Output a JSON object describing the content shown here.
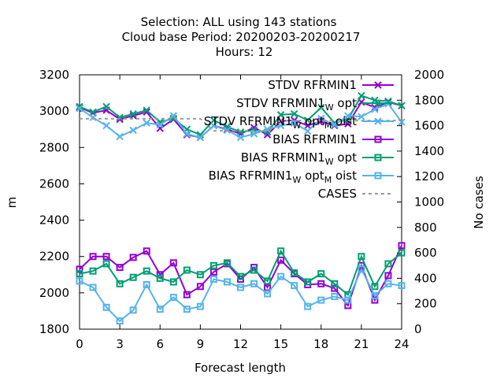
{
  "chart_data": {
    "type": "line",
    "title_lines": [
      "Selection: ALL using   143 stations",
      "Cloud base   Period: 20200203-20200217",
      "Hours:  12"
    ],
    "xlabel": "Forecast length",
    "ylabel": "m",
    "y2label": "No cases",
    "xlim": [
      0,
      24
    ],
    "ylim": [
      1800,
      3200
    ],
    "y2lim": [
      0,
      2000
    ],
    "x_ticks": [
      0,
      3,
      6,
      9,
      12,
      15,
      18,
      21,
      24
    ],
    "y_ticks": [
      1800,
      2000,
      2200,
      2400,
      2600,
      2800,
      3000,
      3200
    ],
    "y2_ticks": [
      0,
      200,
      400,
      600,
      800,
      1000,
      1200,
      1400,
      1600,
      1800,
      2000
    ],
    "grid": false,
    "legend_position": "top-right",
    "x": [
      0,
      1,
      2,
      3,
      4,
      5,
      6,
      7,
      8,
      9,
      10,
      11,
      12,
      13,
      14,
      15,
      16,
      17,
      18,
      19,
      20,
      21,
      22,
      23,
      24
    ],
    "series": [
      {
        "name": "STDV RFRMIN1",
        "legend_parts": [
          {
            "t": "STDV RFRMIN1"
          }
        ],
        "color": "#9400d3",
        "marker": "x",
        "axis": "y",
        "values": [
          3020,
          2990,
          3005,
          2955,
          2975,
          2995,
          2905,
          2955,
          2870,
          2855,
          2920,
          2900,
          2875,
          2910,
          2870,
          2945,
          2950,
          2920,
          2945,
          2920,
          2930,
          3050,
          3020,
          3050,
          3030
        ]
      },
      {
        "name": "STDV RFRMIN1_W opt",
        "legend_parts": [
          {
            "t": "STDV RFRMIN1"
          },
          {
            "t": "W",
            "sub": true
          },
          {
            "t": " opt"
          }
        ],
        "color": "#009e73",
        "marker": "x",
        "axis": "y",
        "values": [
          3025,
          2995,
          3025,
          2965,
          2985,
          3005,
          2940,
          2960,
          2900,
          2870,
          2950,
          2915,
          2885,
          2895,
          2885,
          2980,
          2985,
          2950,
          3020,
          2935,
          2955,
          3085,
          3060,
          3055,
          3030
        ]
      },
      {
        "name": "STDV RFRMIN1_W opt_M oist",
        "legend_parts": [
          {
            "t": "STDV RFRMIN1"
          },
          {
            "t": "W",
            "sub": true
          },
          {
            "t": " opt"
          },
          {
            "t": "M",
            "sub": true
          },
          {
            "t": " oist"
          }
        ],
        "color": "#56b4e9",
        "marker": "x",
        "axis": "y",
        "values": [
          3015,
          2965,
          2920,
          2860,
          2895,
          2935,
          2925,
          2975,
          2875,
          2855,
          2920,
          2895,
          2855,
          2875,
          2900,
          2920,
          2935,
          2890,
          2960,
          2925,
          2975,
          2970,
          3010,
          3040,
          2940
        ]
      },
      {
        "name": "BIAS RFRMIN1",
        "legend_parts": [
          {
            "t": "BIAS RFRMIN1"
          }
        ],
        "color": "#9400d3",
        "marker": "square",
        "axis": "y",
        "values": [
          2130,
          2200,
          2200,
          2140,
          2195,
          2230,
          2100,
          2165,
          1990,
          2035,
          2115,
          2160,
          2075,
          2140,
          2030,
          2180,
          2105,
          2045,
          2050,
          2025,
          1930,
          2150,
          1960,
          2095,
          2260
        ]
      },
      {
        "name": "BIAS RFRMIN1_W opt",
        "legend_parts": [
          {
            "t": "BIAS RFRMIN1"
          },
          {
            "t": "W",
            "sub": true
          },
          {
            "t": " opt"
          }
        ],
        "color": "#009e73",
        "marker": "square",
        "axis": "y",
        "values": [
          2105,
          2120,
          2160,
          2050,
          2085,
          2120,
          2080,
          2060,
          2125,
          2100,
          2150,
          2165,
          2090,
          2125,
          2065,
          2230,
          2110,
          2060,
          2105,
          2050,
          1990,
          2200,
          2035,
          2160,
          2220
        ]
      },
      {
        "name": "BIAS RFRMIN1_W opt_M oist",
        "legend_parts": [
          {
            "t": "BIAS RFRMIN1"
          },
          {
            "t": "W",
            "sub": true
          },
          {
            "t": " opt"
          },
          {
            "t": "M",
            "sub": true
          },
          {
            "t": " oist"
          }
        ],
        "color": "#56b4e9",
        "marker": "square",
        "axis": "y",
        "values": [
          2065,
          2030,
          1920,
          1845,
          1905,
          2045,
          1910,
          1975,
          1910,
          1925,
          2075,
          2060,
          2030,
          2050,
          1995,
          2090,
          2040,
          1925,
          1960,
          1980,
          1960,
          2130,
          1985,
          2050,
          2040
        ]
      },
      {
        "name": "CASES",
        "legend_parts": [
          {
            "t": "CASES"
          }
        ],
        "color": "#999999",
        "marker": "none",
        "dashed": true,
        "axis": "y2",
        "values": [
          1655,
          1655,
          1655,
          1655,
          1655,
          1655,
          1655,
          1655,
          1655,
          1655,
          1560,
          1560,
          1560,
          1560,
          1560,
          1640,
          1640,
          1640,
          1640,
          1640,
          1640,
          1640,
          1640,
          1640,
          1640
        ]
      }
    ]
  }
}
